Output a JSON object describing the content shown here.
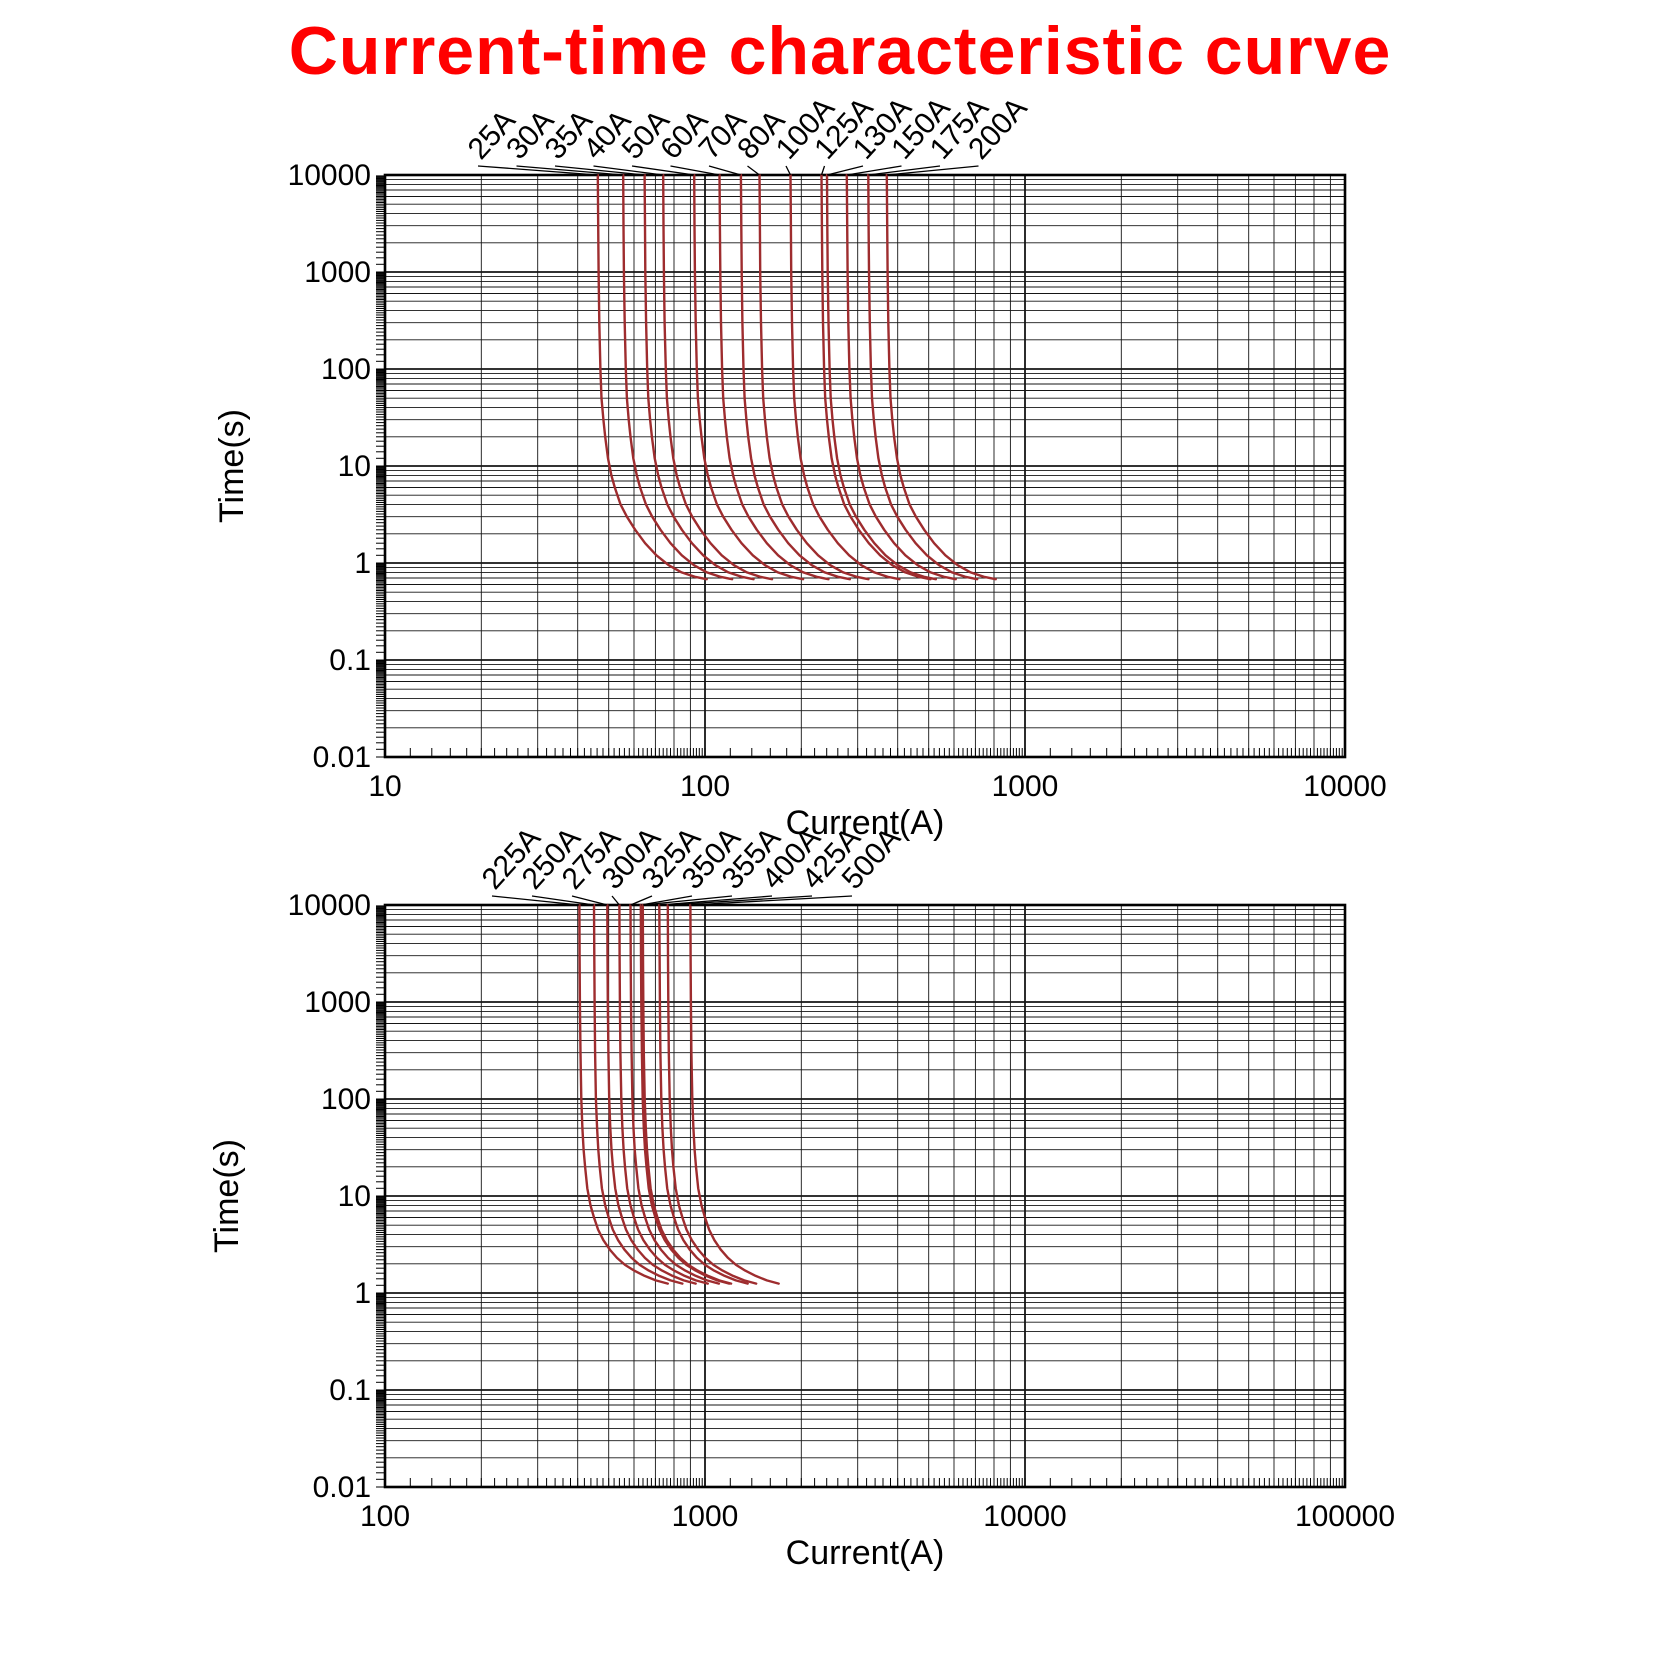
{
  "title": "Current-time characteristic curve",
  "title_color": "#FF0000",
  "chart_data": [
    {
      "id": "low-ratings",
      "type": "line",
      "x_scale": "log",
      "y_scale": "log",
      "xlabel": "Current(A)",
      "ylabel": "Time(s)",
      "x_range": [
        10,
        10000
      ],
      "y_range": [
        0.01,
        10000
      ],
      "x_tick_labels": [
        "10",
        "100",
        "1000",
        "10000"
      ],
      "y_tick_labels": [
        "10000",
        "1000",
        "100",
        "10",
        "1",
        "0.1",
        "0.01"
      ],
      "grid": "log major and minor, on",
      "legend_position": "rotated labels above plot with leader lines",
      "curve_color": "#9E2C2E",
      "curves": [
        {
          "label": "25A",
          "amps": 25
        },
        {
          "label": "30A",
          "amps": 30
        },
        {
          "label": "35A",
          "amps": 35
        },
        {
          "label": "40A",
          "amps": 40
        },
        {
          "label": "50A",
          "amps": 50
        },
        {
          "label": "60A",
          "amps": 60
        },
        {
          "label": "70A",
          "amps": 70
        },
        {
          "label": "80A",
          "amps": 80
        },
        {
          "label": "100A",
          "amps": 100
        },
        {
          "label": "125A",
          "amps": 125
        },
        {
          "label": "130A",
          "amps": 130
        },
        {
          "label": "150A",
          "amps": 150
        },
        {
          "label": "175A",
          "amps": 175
        },
        {
          "label": "200A",
          "amps": 200
        }
      ],
      "curve_shape_multiple_vs_time": [
        [
          1.85,
          10000
        ],
        [
          1.855,
          3000
        ],
        [
          1.86,
          1000
        ],
        [
          1.87,
          300
        ],
        [
          1.885,
          100
        ],
        [
          1.9,
          50
        ],
        [
          1.925,
          30
        ],
        [
          1.95,
          20
        ],
        [
          1.99,
          12
        ],
        [
          2.04,
          8
        ],
        [
          2.09,
          6
        ],
        [
          2.18,
          4
        ],
        [
          2.28,
          3
        ],
        [
          2.42,
          2.2
        ],
        [
          2.6,
          1.6
        ],
        [
          2.82,
          1.2
        ],
        [
          3.08,
          0.95
        ],
        [
          3.38,
          0.8
        ],
        [
          3.72,
          0.72
        ],
        [
          4.05,
          0.68
        ]
      ]
    },
    {
      "id": "high-ratings",
      "type": "line",
      "x_scale": "log",
      "y_scale": "log",
      "xlabel": "Current(A)",
      "ylabel": "Time(s)",
      "x_range": [
        100,
        100000
      ],
      "y_range": [
        0.01,
        10000
      ],
      "x_tick_labels": [
        "100",
        "1000",
        "10000",
        "100000"
      ],
      "y_tick_labels": [
        "10000",
        "1000",
        "100",
        "10",
        "1",
        "0.1",
        "0.01"
      ],
      "grid": "log major and minor, on",
      "legend_position": "rotated labels above plot with leader lines",
      "curve_color": "#9E2C2E",
      "curves": [
        {
          "label": "225A",
          "amps": 225
        },
        {
          "label": "250A",
          "amps": 250
        },
        {
          "label": "275A",
          "amps": 275
        },
        {
          "label": "300A",
          "amps": 300
        },
        {
          "label": "325A",
          "amps": 325
        },
        {
          "label": "350A",
          "amps": 350
        },
        {
          "label": "355A",
          "amps": 355
        },
        {
          "label": "400A",
          "amps": 400
        },
        {
          "label": "425A",
          "amps": 425
        },
        {
          "label": "500A",
          "amps": 500
        }
      ],
      "curve_shape_multiple_vs_time": [
        [
          1.8,
          10000
        ],
        [
          1.803,
          3000
        ],
        [
          1.807,
          1000
        ],
        [
          1.814,
          300
        ],
        [
          1.825,
          100
        ],
        [
          1.84,
          50
        ],
        [
          1.856,
          30
        ],
        [
          1.875,
          20
        ],
        [
          1.905,
          12
        ],
        [
          1.95,
          8
        ],
        [
          2.0,
          6
        ],
        [
          2.06,
          4.5
        ],
        [
          2.14,
          3.5
        ],
        [
          2.24,
          2.8
        ],
        [
          2.36,
          2.3
        ],
        [
          2.5,
          1.95
        ],
        [
          2.67,
          1.7
        ],
        [
          2.88,
          1.5
        ],
        [
          3.12,
          1.35
        ],
        [
          3.4,
          1.25
        ]
      ]
    }
  ]
}
